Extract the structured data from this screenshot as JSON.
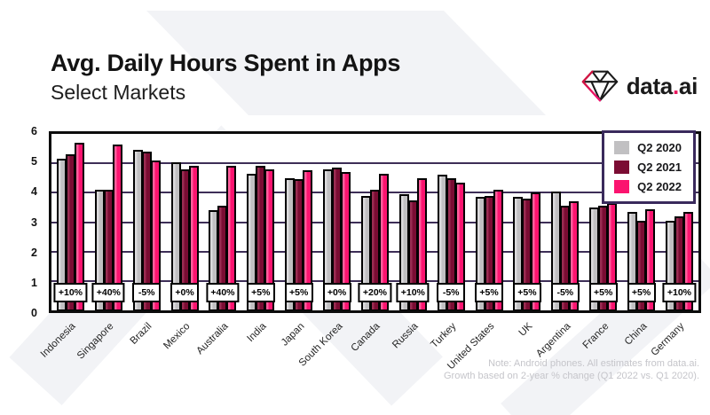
{
  "header": {
    "title": "Avg. Daily Hours Spent in Apps",
    "subtitle": "Select Markets"
  },
  "logo": {
    "text_pre": "data",
    "dot": ".",
    "text_post": "ai"
  },
  "legend": [
    {
      "label": "Q2 2020",
      "color": "#c1c0c2"
    },
    {
      "label": "Q2 2021",
      "color": "#7b0c33"
    },
    {
      "label": "Q2 2022",
      "color": "#fb146f"
    }
  ],
  "footnote": {
    "line1": "Note: Android phones. All estimates from data.ai.",
    "line2": "Growth based on 2-year % change (Q1 2022 vs. Q1 2020)."
  },
  "colors": {
    "accent_pink": "#fb146f",
    "maroon": "#7b0c33",
    "gray": "#c1c0c2",
    "gridline": "#3d2e57",
    "legend_border": "#3a2a5c",
    "watermark": "#f2f3f6"
  },
  "chart_data": {
    "type": "bar",
    "title": "Avg. Daily Hours Spent in Apps",
    "subtitle": "Select Markets",
    "categories": [
      "Indonesia",
      "Singapore",
      "Brazil",
      "Mexico",
      "Australia",
      "India",
      "Japan",
      "South Korea",
      "Canada",
      "Russia",
      "Turkey",
      "United States",
      "UK",
      "Argentina",
      "France",
      "China",
      "Germany"
    ],
    "series": [
      {
        "name": "Q2 2020",
        "color": "#c1c0c2",
        "highlight": "#dbdadc",
        "values": [
          5.15,
          4.1,
          5.45,
          5.05,
          3.4,
          4.65,
          4.5,
          4.8,
          3.9,
          3.95,
          4.6,
          3.85,
          3.85,
          4.05,
          3.5,
          3.35,
          3.05
        ]
      },
      {
        "name": "Q2 2021",
        "color": "#7b0c33",
        "highlight": "#9a2c52",
        "values": [
          5.3,
          4.1,
          5.4,
          4.8,
          3.55,
          4.9,
          4.45,
          4.85,
          4.1,
          3.75,
          4.5,
          3.9,
          3.8,
          3.55,
          3.55,
          3.05,
          3.2
        ]
      },
      {
        "name": "Q2 2022",
        "color": "#fb146f",
        "highlight": "#fd5e9c",
        "values": [
          5.7,
          5.65,
          5.1,
          4.9,
          4.9,
          4.8,
          4.75,
          4.7,
          4.65,
          4.5,
          4.35,
          4.1,
          4.0,
          3.7,
          3.65,
          3.45,
          3.35
        ]
      }
    ],
    "growth_labels": [
      "+10%",
      "+40%",
      "-5%",
      "+0%",
      "+40%",
      "+5%",
      "+5%",
      "+0%",
      "+20%",
      "+10%",
      "-5%",
      "+5%",
      "+5%",
      "-5%",
      "+5%",
      "+5%",
      "+10%"
    ],
    "ylabel": "",
    "xlabel": "",
    "ylim": [
      0,
      6
    ],
    "yticks": [
      0,
      1,
      2,
      3,
      4,
      5,
      6
    ],
    "grid": true,
    "legend_position": "top-right"
  }
}
